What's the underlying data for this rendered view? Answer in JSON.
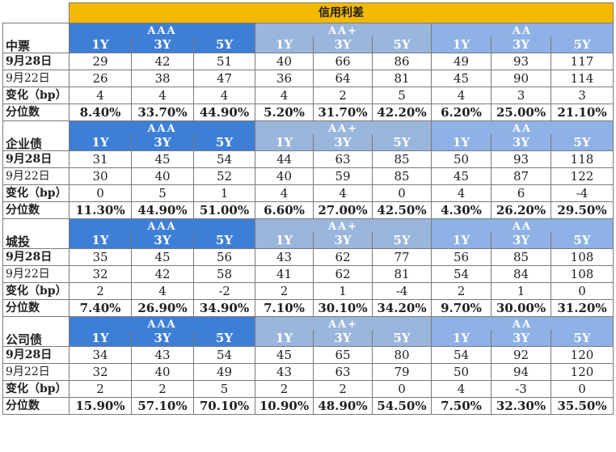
{
  "title": "信用利差",
  "grades": [
    "AAA",
    "AA+",
    "AA"
  ],
  "tenors": [
    "1Y",
    "3Y",
    "5Y"
  ],
  "sections": [
    {
      "name": "中票",
      "rows": [
        {
          "label": "9月28日",
          "bold": true,
          "values": [
            "29",
            "42",
            "51",
            "40",
            "66",
            "86",
            "49",
            "93",
            "117"
          ]
        },
        {
          "label": "9月22日",
          "bold": false,
          "values": [
            "26",
            "38",
            "47",
            "36",
            "64",
            "81",
            "45",
            "90",
            "114"
          ]
        },
        {
          "label": "变化（bp）",
          "bold": true,
          "values": [
            "4",
            "4",
            "4",
            "4",
            "2",
            "5",
            "4",
            "3",
            "3"
          ]
        },
        {
          "label": "分位数",
          "bold": true,
          "pct": true,
          "values": [
            "8.40%",
            "33.70%",
            "44.90%",
            "5.20%",
            "31.70%",
            "42.20%",
            "6.20%",
            "25.00%",
            "21.10%"
          ]
        }
      ]
    },
    {
      "name": "企业债",
      "rows": [
        {
          "label": "9月28日",
          "bold": true,
          "values": [
            "31",
            "45",
            "54",
            "44",
            "63",
            "85",
            "50",
            "93",
            "118"
          ]
        },
        {
          "label": "9月22日",
          "bold": false,
          "values": [
            "30",
            "40",
            "52",
            "40",
            "59",
            "85",
            "45",
            "87",
            "122"
          ]
        },
        {
          "label": "变化（bp）",
          "bold": true,
          "values": [
            "0",
            "5",
            "1",
            "4",
            "4",
            "0",
            "4",
            "6",
            "-4"
          ]
        },
        {
          "label": "分位数",
          "bold": true,
          "pct": true,
          "values": [
            "11.30%",
            "44.90%",
            "51.00%",
            "6.60%",
            "27.00%",
            "42.50%",
            "4.30%",
            "26.20%",
            "29.50%"
          ]
        }
      ]
    },
    {
      "name": "城投",
      "rows": [
        {
          "label": "9月28日",
          "bold": true,
          "values": [
            "35",
            "45",
            "56",
            "43",
            "62",
            "77",
            "56",
            "85",
            "108"
          ]
        },
        {
          "label": "9月22日",
          "bold": false,
          "values": [
            "32",
            "42",
            "58",
            "41",
            "62",
            "81",
            "54",
            "84",
            "108"
          ]
        },
        {
          "label": "变化（bp）",
          "bold": true,
          "values": [
            "2",
            "4",
            "-2",
            "2",
            "1",
            "-4",
            "2",
            "1",
            "0"
          ]
        },
        {
          "label": "分位数",
          "bold": true,
          "pct": true,
          "values": [
            "7.40%",
            "26.90%",
            "34.90%",
            "7.10%",
            "30.10%",
            "34.20%",
            "9.70%",
            "30.00%",
            "31.20%"
          ]
        }
      ]
    },
    {
      "name": "公司债",
      "rows": [
        {
          "label": "9月28日",
          "bold": true,
          "values": [
            "34",
            "43",
            "54",
            "45",
            "65",
            "80",
            "54",
            "92",
            "120"
          ]
        },
        {
          "label": "9月22日",
          "bold": false,
          "values": [
            "32",
            "40",
            "49",
            "43",
            "63",
            "79",
            "50",
            "94",
            "120"
          ]
        },
        {
          "label": "变化（bp）",
          "bold": true,
          "values": [
            "2",
            "2",
            "5",
            "2",
            "2",
            "0",
            "4",
            "-3",
            "0"
          ]
        },
        {
          "label": "分位数",
          "bold": true,
          "pct": true,
          "values": [
            "15.90%",
            "57.10%",
            "70.10%",
            "10.90%",
            "48.90%",
            "54.50%",
            "7.50%",
            "32.30%",
            "35.50%"
          ]
        }
      ]
    }
  ]
}
